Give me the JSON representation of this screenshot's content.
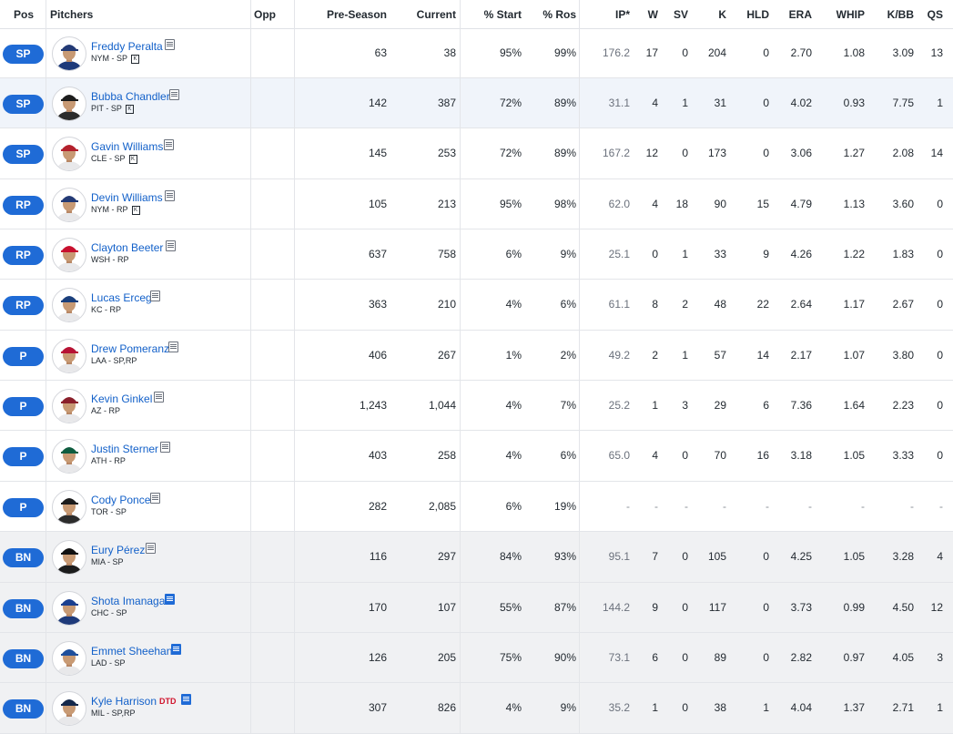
{
  "headers": {
    "pos": "Pos",
    "pitchers": "Pitchers",
    "opp": "Opp",
    "preseason": "Pre-Season",
    "current": "Current",
    "pct_start": "% Start",
    "pct_ros": "% Ros",
    "ip": "IP*",
    "w": "W",
    "sv": "SV",
    "k": "K",
    "hld": "HLD",
    "era": "ERA",
    "whip": "WHIP",
    "kbb": "K/BB",
    "qs": "QS"
  },
  "k_badge": "K",
  "players": [
    {
      "pos": "SP",
      "name": "Freddy Peralta",
      "team": "NYM - SP",
      "k": true,
      "jersey": "#1e3a7a",
      "cap": "#233a75",
      "pre": "63",
      "cur": "38",
      "start": "95%",
      "ros": "99%",
      "ip": "176.2",
      "w": "17",
      "sv": "0",
      "so": "204",
      "hld": "0",
      "era": "2.70",
      "whip": "1.08",
      "kbb": "3.09",
      "qs": "13"
    },
    {
      "pos": "SP",
      "name": "Bubba Chandler",
      "team": "PIT - SP",
      "k": true,
      "jersey": "#2c2c2c",
      "cap": "#1c1c1c",
      "pre": "142",
      "cur": "387",
      "start": "72%",
      "ros": "89%",
      "ip": "31.1",
      "w": "4",
      "sv": "1",
      "so": "31",
      "hld": "0",
      "era": "4.02",
      "whip": "0.93",
      "kbb": "7.75",
      "qs": "1"
    },
    {
      "pos": "SP",
      "name": "Gavin Williams",
      "team": "CLE - SP",
      "k": true,
      "jersey": "#e8e8ea",
      "cap": "#b3202c",
      "pre": "145",
      "cur": "253",
      "start": "72%",
      "ros": "89%",
      "ip": "167.2",
      "w": "12",
      "sv": "0",
      "so": "173",
      "hld": "0",
      "era": "3.06",
      "whip": "1.27",
      "kbb": "2.08",
      "qs": "14"
    },
    {
      "pos": "RP",
      "name": "Devin Williams",
      "team": "NYM - RP",
      "k": true,
      "jersey": "#e8e8ea",
      "cap": "#233a75",
      "pre": "105",
      "cur": "213",
      "start": "95%",
      "ros": "98%",
      "ip": "62.0",
      "w": "4",
      "sv": "18",
      "so": "90",
      "hld": "15",
      "era": "4.79",
      "whip": "1.13",
      "kbb": "3.60",
      "qs": "0"
    },
    {
      "pos": "RP",
      "name": "Clayton Beeter",
      "team": "WSH - RP",
      "k": false,
      "jersey": "#e8e8ea",
      "cap": "#c8102e",
      "pre": "637",
      "cur": "758",
      "start": "6%",
      "ros": "9%",
      "ip": "25.1",
      "w": "0",
      "sv": "1",
      "so": "33",
      "hld": "9",
      "era": "4.26",
      "whip": "1.22",
      "kbb": "1.83",
      "qs": "0"
    },
    {
      "pos": "RP",
      "name": "Lucas Erceg",
      "team": "KC - RP",
      "k": false,
      "jersey": "#e8e8ea",
      "cap": "#1a3f7c",
      "pre": "363",
      "cur": "210",
      "start": "4%",
      "ros": "6%",
      "ip": "61.1",
      "w": "8",
      "sv": "2",
      "so": "48",
      "hld": "22",
      "era": "2.64",
      "whip": "1.17",
      "kbb": "2.67",
      "qs": "0"
    },
    {
      "pos": "P",
      "name": "Drew Pomeranz",
      "team": "LAA - SP,RP",
      "k": false,
      "jersey": "#e8e8ea",
      "cap": "#b71234",
      "pre": "406",
      "cur": "267",
      "start": "1%",
      "ros": "2%",
      "ip": "49.2",
      "w": "2",
      "sv": "1",
      "so": "57",
      "hld": "14",
      "era": "2.17",
      "whip": "1.07",
      "kbb": "3.80",
      "qs": "0"
    },
    {
      "pos": "P",
      "name": "Kevin Ginkel",
      "team": "AZ - RP",
      "k": false,
      "jersey": "#e8e8ea",
      "cap": "#8a1f2b",
      "pre": "1,243",
      "cur": "1,044",
      "start": "4%",
      "ros": "7%",
      "ip": "25.2",
      "w": "1",
      "sv": "3",
      "so": "29",
      "hld": "6",
      "era": "7.36",
      "whip": "1.64",
      "kbb": "2.23",
      "qs": "0"
    },
    {
      "pos": "P",
      "name": "Justin Sterner",
      "team": "ATH - RP",
      "k": false,
      "jersey": "#e8e8ea",
      "cap": "#0e5c3f",
      "pre": "403",
      "cur": "258",
      "start": "4%",
      "ros": "6%",
      "ip": "65.0",
      "w": "4",
      "sv": "0",
      "so": "70",
      "hld": "16",
      "era": "3.18",
      "whip": "1.05",
      "kbb": "3.33",
      "qs": "0"
    },
    {
      "pos": "P",
      "name": "Cody Ponce",
      "team": "TOR - SP",
      "k": false,
      "jersey": "#2c2c2c",
      "cap": "#1c1c1c",
      "pre": "282",
      "cur": "2,085",
      "start": "6%",
      "ros": "19%",
      "ip": "-",
      "w": "-",
      "sv": "-",
      "so": "-",
      "hld": "-",
      "era": "-",
      "whip": "-",
      "kbb": "-",
      "qs": "-"
    },
    {
      "pos": "BN",
      "name": "Eury Pérez",
      "team": "MIA - SP",
      "k": false,
      "jersey": "#1c1c1c",
      "cap": "#111111",
      "pre": "116",
      "cur": "297",
      "start": "84%",
      "ros": "93%",
      "ip": "95.1",
      "w": "7",
      "sv": "0",
      "so": "105",
      "hld": "0",
      "era": "4.25",
      "whip": "1.05",
      "kbb": "3.28",
      "qs": "4"
    },
    {
      "pos": "BN",
      "name": "Shota Imanaga",
      "team": "CHC - SP",
      "k": false,
      "jersey": "#1e3a7a",
      "cap": "#1a3f8f",
      "pre": "170",
      "cur": "107",
      "start": "55%",
      "ros": "87%",
      "ip": "144.2",
      "w": "9",
      "sv": "0",
      "so": "117",
      "hld": "0",
      "era": "3.73",
      "whip": "0.99",
      "kbb": "4.50",
      "qs": "12"
    },
    {
      "pos": "BN",
      "name": "Emmet Sheehan",
      "team": "LAD - SP",
      "k": false,
      "jersey": "#e8e8ea",
      "cap": "#1e4f9c",
      "pre": "126",
      "cur": "205",
      "start": "75%",
      "ros": "90%",
      "ip": "73.1",
      "w": "6",
      "sv": "0",
      "so": "89",
      "hld": "0",
      "era": "2.82",
      "whip": "0.97",
      "kbb": "4.05",
      "qs": "3"
    },
    {
      "pos": "BN",
      "name": "Kyle Harrison",
      "team": "MIL - SP,RP",
      "k": false,
      "dtd": "DTD",
      "jersey": "#e8e8ea",
      "cap": "#14284b",
      "pre": "307",
      "cur": "826",
      "start": "4%",
      "ros": "9%",
      "ip": "35.2",
      "w": "1",
      "sv": "0",
      "so": "38",
      "hld": "1",
      "era": "4.04",
      "whip": "1.37",
      "kbb": "2.71",
      "qs": "1"
    }
  ]
}
